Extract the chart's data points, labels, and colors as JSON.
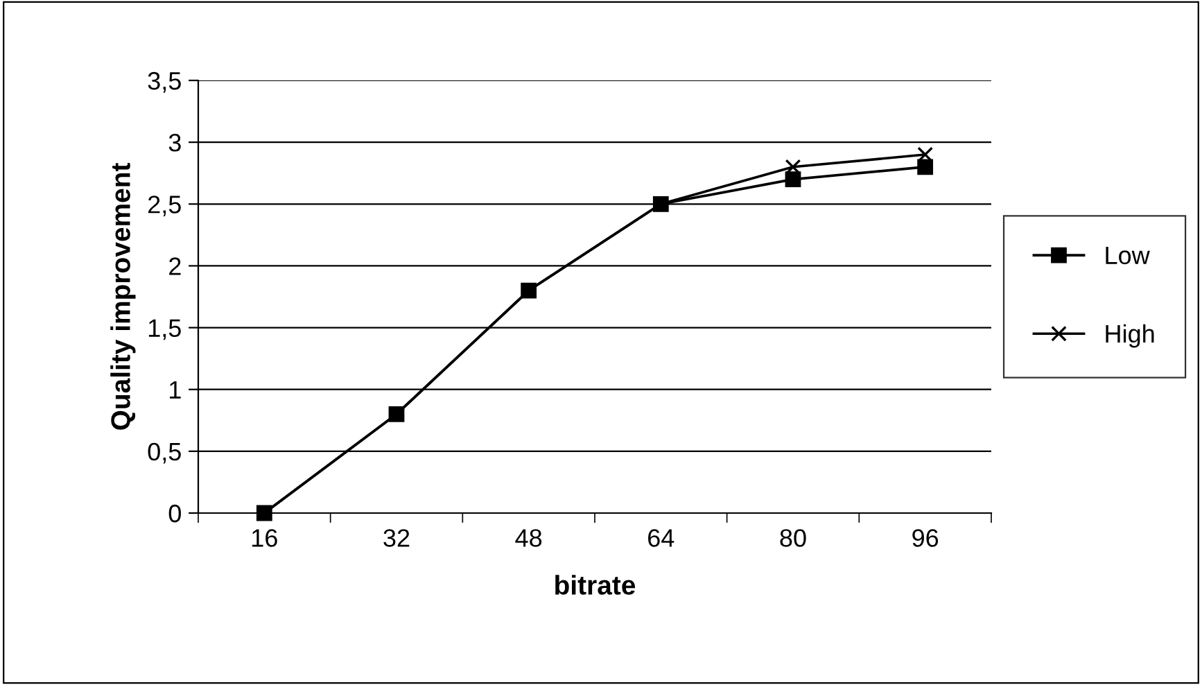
{
  "chart_data": {
    "type": "line",
    "xlabel": "bitrate",
    "ylabel": "Quality improvement",
    "categories": [
      "16",
      "32",
      "48",
      "64",
      "80",
      "96"
    ],
    "series": [
      {
        "name": "Low",
        "color": "#000000",
        "marker": "square",
        "values": [
          0,
          0.8,
          1.8,
          2.5,
          2.7,
          2.8
        ]
      },
      {
        "name": "High",
        "color": "#000000",
        "marker": "cross",
        "values": [
          0,
          0.8,
          1.8,
          2.5,
          2.8,
          2.9
        ]
      }
    ],
    "ylim": [
      0,
      3.5
    ],
    "yticks": [
      0,
      {
        "value": 0.5,
        "label": "0,5"
      },
      1,
      {
        "value": 1.5,
        "label": "1,5"
      },
      2,
      {
        "value": 2.5,
        "label": "2,5"
      },
      3,
      {
        "value": 3.5,
        "label": "3,5"
      }
    ],
    "grid": "y",
    "legend": "right",
    "line_style": "solid"
  }
}
